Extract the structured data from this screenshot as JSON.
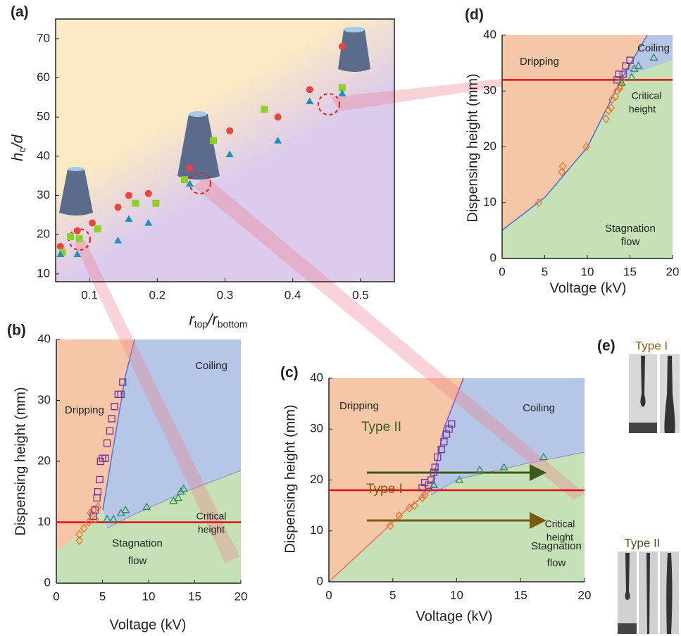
{
  "chart_data": [
    {
      "type": "scatter",
      "label": "(a)",
      "xlabel": [
        "r",
        "top",
        "/r",
        "bottom"
      ],
      "ylabel": [
        "h",
        "c",
        "/d"
      ],
      "xlim": [
        0.05,
        0.55
      ],
      "ylim": [
        8,
        75
      ],
      "xticks": [
        0.1,
        0.2,
        0.3,
        0.4,
        0.5
      ],
      "yticks": [
        10,
        20,
        30,
        40,
        50,
        60,
        70
      ],
      "series": [
        {
          "marker": "circle",
          "color": "#e8453c",
          "filled": true,
          "x": [
            0.057,
            0.082,
            0.104,
            0.142,
            0.158,
            0.187,
            0.248,
            0.307,
            0.378,
            0.425,
            0.473
          ],
          "y": [
            17,
            21,
            23,
            27,
            30,
            30.5,
            37,
            46.5,
            50,
            57,
            68
          ]
        },
        {
          "marker": "square",
          "color": "#8fd12a",
          "filled": true,
          "x": [
            0.06,
            0.072,
            0.085,
            0.112,
            0.168,
            0.198,
            0.24,
            0.283,
            0.358,
            0.473
          ],
          "y": [
            15.5,
            19.5,
            19,
            21.5,
            28,
            28,
            34,
            44,
            52,
            57.5
          ]
        },
        {
          "marker": "triangle",
          "color": "#1f8fbf",
          "filled": true,
          "x": [
            0.057,
            0.082,
            0.142,
            0.158,
            0.187,
            0.248,
            0.307,
            0.378,
            0.425,
            0.473
          ],
          "y": [
            15,
            15,
            18.5,
            24,
            23,
            33,
            40.5,
            44,
            54,
            56
          ]
        }
      ]
    },
    {
      "type": "scatter",
      "label": "(b)",
      "xlabel": "Voltage (kV)",
      "ylabel": "Dispensing height (mm)",
      "xlim": [
        0,
        20
      ],
      "ylim": [
        0,
        40
      ],
      "xticks": [
        0,
        5,
        10,
        15,
        20
      ],
      "yticks": [
        0,
        10,
        20,
        30,
        40
      ],
      "regions": [
        "Dripping",
        "Coiling",
        "Stagnation",
        "flow"
      ],
      "critical_height": 10,
      "critical_label": [
        "Critical",
        "height"
      ],
      "series": [
        {
          "marker": "diamond",
          "color": "#f07030",
          "filled": false,
          "x": [
            2.5,
            2.5,
            3,
            3.5,
            3.7,
            4,
            4.2,
            4.5
          ],
          "y": [
            7,
            8,
            9,
            10,
            11.5,
            12,
            10.5,
            12.5
          ]
        },
        {
          "marker": "square",
          "color": "#7030a0",
          "filled": false,
          "x": [
            4,
            4.2,
            4.4,
            4.5,
            4.7,
            4.8,
            5,
            5.3,
            5.5,
            5.8,
            6,
            6.3,
            6.7,
            7,
            7.2
          ],
          "y": [
            11,
            12,
            14,
            15,
            17,
            20,
            20.5,
            20.5,
            23,
            25,
            27,
            29,
            31,
            31,
            33
          ]
        },
        {
          "marker": "triangle",
          "color": "#2e8b57",
          "filled": false,
          "x": [
            5.5,
            6.2,
            7,
            7.5,
            9.8,
            12.7,
            13.2,
            13.5,
            13.8
          ],
          "y": [
            10.5,
            10.5,
            11.5,
            12,
            12.5,
            13.5,
            14,
            15,
            15.5
          ]
        }
      ]
    },
    {
      "type": "scatter",
      "label": "(c)",
      "xlabel": "Voltage (kV)",
      "ylabel": "Dispensing height (mm)",
      "xlim": [
        0,
        20
      ],
      "ylim": [
        0,
        40
      ],
      "xticks": [
        0,
        5,
        10,
        15,
        20
      ],
      "yticks": [
        0,
        10,
        20,
        30,
        40
      ],
      "regions": [
        "Dripping",
        "Coiling",
        "Stagnation",
        "flow"
      ],
      "critical_height": 18,
      "critical_label": [
        "Critical",
        "height"
      ],
      "arrows": [
        {
          "label": "Type II",
          "color": "#3d5a1e"
        },
        {
          "label": "Type I",
          "color": "#7a5a10"
        }
      ],
      "series": [
        {
          "marker": "diamond",
          "color": "#f07030",
          "filled": false,
          "x": [
            4.8,
            5.5,
            6.3,
            6.7,
            7.3,
            7.5
          ],
          "y": [
            11,
            13,
            14.5,
            15,
            16.5,
            17
          ]
        },
        {
          "marker": "square",
          "color": "#7030a0",
          "filled": false,
          "x": [
            7.3,
            7.5,
            7.8,
            8,
            8.2,
            8.3,
            8.5,
            8.8,
            9,
            9.2,
            9.4,
            9.6
          ],
          "y": [
            18.5,
            19.5,
            19,
            20,
            21.5,
            22.5,
            24.5,
            26,
            27.5,
            29,
            30,
            31
          ]
        },
        {
          "marker": "triangle",
          "color": "#2e8b57",
          "filled": false,
          "x": [
            8.2,
            10.2,
            11.8,
            13.7,
            16.8
          ],
          "y": [
            19,
            20,
            22,
            22.5,
            24.5
          ]
        }
      ]
    },
    {
      "type": "scatter",
      "label": "(d)",
      "xlabel": "Voltage (kV)",
      "ylabel": "Dispensing height (mm)",
      "xlim": [
        0,
        20
      ],
      "ylim": [
        0,
        40
      ],
      "xticks": [
        0,
        5,
        10,
        15,
        20
      ],
      "yticks": [
        0,
        10,
        20,
        30,
        40
      ],
      "regions": [
        "Dripping",
        "Coiling",
        "Stagnation",
        "flow"
      ],
      "critical_height": 32,
      "critical_label": [
        "Critical",
        "height"
      ],
      "series": [
        {
          "marker": "diamond",
          "color": "#f07030",
          "filled": false,
          "x": [
            4.3,
            7,
            7.1,
            9.9,
            12.2,
            12.5,
            12.8,
            12.9,
            13.3,
            13.5,
            13.8,
            13.9,
            14
          ],
          "y": [
            10,
            15.5,
            16.5,
            20,
            25,
            26.5,
            27,
            28.5,
            29,
            30,
            30.5,
            31,
            32
          ]
        },
        {
          "marker": "square",
          "color": "#7030a0",
          "filled": false,
          "x": [
            13.5,
            13.7,
            14.2,
            14.5,
            15
          ],
          "y": [
            32,
            33,
            33,
            34.5,
            35.5
          ]
        },
        {
          "marker": "triangle",
          "color": "#2e8b57",
          "filled": false,
          "x": [
            14,
            15.2,
            15.5,
            16,
            17.8
          ],
          "y": [
            31.5,
            32.5,
            34,
            34.5,
            36
          ]
        }
      ]
    }
  ],
  "panel_e": {
    "label": "(e)",
    "groups": [
      "Type I",
      "Type II"
    ]
  }
}
